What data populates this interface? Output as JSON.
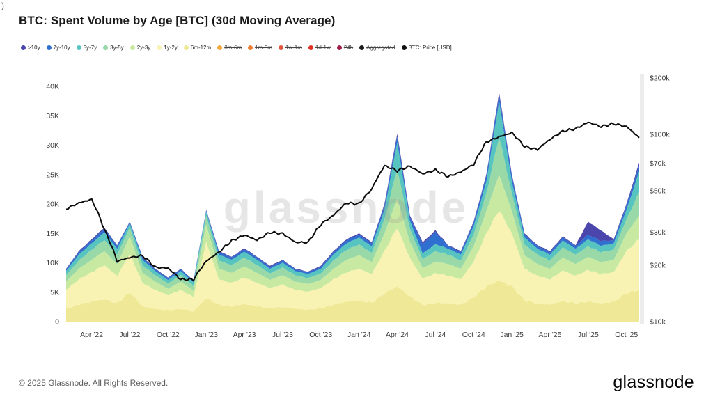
{
  "artifact": ")",
  "title": "BTC: Spent Volume by Age [BTC] (30d Moving Average)",
  "watermark": "glassnode",
  "footer": {
    "copyright": "© 2025 Glassnode. All Rights Reserved.",
    "brand": "glassnode"
  },
  "legend": [
    {
      "label": ">10y",
      "color": "#4a46ab",
      "active": true
    },
    {
      "label": "7y-10y",
      "color": "#2f6fd0",
      "active": true
    },
    {
      "label": "5y-7y",
      "color": "#57c4c0",
      "active": true
    },
    {
      "label": "3y-5y",
      "color": "#99d9a8",
      "active": true
    },
    {
      "label": "2y-3y",
      "color": "#c8e9a2",
      "active": true
    },
    {
      "label": "1y-2y",
      "color": "#f8f3b2",
      "active": true
    },
    {
      "label": "6m-12m",
      "color": "#efe896",
      "active": true
    },
    {
      "label": "3m-6m",
      "color": "#f5a83d",
      "active": false
    },
    {
      "label": "1m-3m",
      "color": "#ec7f36",
      "active": false
    },
    {
      "label": "1w-1m",
      "color": "#e25540",
      "active": false
    },
    {
      "label": "1d-1w",
      "color": "#df3025",
      "active": false
    },
    {
      "label": "24h",
      "color": "#9f1f4f",
      "active": false
    },
    {
      "label": "Aggregated",
      "color": "#1c1c1c",
      "active": false
    },
    {
      "label": "BTC: Price [USD]",
      "color": "#111111",
      "active": true
    }
  ],
  "chart_data": {
    "type": "area",
    "stacked": true,
    "title": "BTC: Spent Volume by Age [BTC] (30d Moving Average)",
    "x_months": [
      "Feb '22",
      "Mar '22",
      "Apr '22",
      "May '22",
      "Jun '22",
      "Jul '22",
      "Aug '22",
      "Sep '22",
      "Oct '22",
      "Nov '22",
      "Dec '22",
      "Jan '23",
      "Feb '23",
      "Mar '23",
      "Apr '23",
      "May '23",
      "Jun '23",
      "Jul '23",
      "Aug '23",
      "Sep '23",
      "Oct '23",
      "Nov '23",
      "Dec '23",
      "Jan '24",
      "Feb '24",
      "Mar '24",
      "Apr '24",
      "May '24",
      "Jun '24",
      "Jul '24",
      "Aug '24",
      "Sep '24",
      "Oct '24",
      "Nov '24",
      "Dec '24",
      "Jan '25",
      "Feb '25",
      "Mar '25",
      "Apr '25",
      "May '25",
      "Jun '25",
      "Jul '25",
      "Aug '25",
      "Sep '25",
      "Oct '25",
      "Nov '25"
    ],
    "x_ticks": [
      {
        "i": 2,
        "label": "Apr '22"
      },
      {
        "i": 5,
        "label": "Jul '22"
      },
      {
        "i": 8,
        "label": "Oct '22"
      },
      {
        "i": 11,
        "label": "Jan '23"
      },
      {
        "i": 14,
        "label": "Apr '23"
      },
      {
        "i": 17,
        "label": "Jul '23"
      },
      {
        "i": 20,
        "label": "Oct '23"
      },
      {
        "i": 23,
        "label": "Jan '24"
      },
      {
        "i": 26,
        "label": "Apr '24"
      },
      {
        "i": 29,
        "label": "Jul '24"
      },
      {
        "i": 32,
        "label": "Oct '24"
      },
      {
        "i": 35,
        "label": "Jan '25"
      },
      {
        "i": 38,
        "label": "Apr '25"
      },
      {
        "i": 41,
        "label": "Jul '25"
      },
      {
        "i": 44,
        "label": "Oct '25"
      }
    ],
    "left_axis": {
      "min": 0,
      "max": 40000,
      "ticks": [
        {
          "v": 0,
          "label": "0"
        },
        {
          "v": 5000,
          "label": "5K"
        },
        {
          "v": 10000,
          "label": "10K"
        },
        {
          "v": 15000,
          "label": "15K"
        },
        {
          "v": 20000,
          "label": "20K"
        },
        {
          "v": 25000,
          "label": "25K"
        },
        {
          "v": 30000,
          "label": "30K"
        },
        {
          "v": 35000,
          "label": "35K"
        },
        {
          "v": 40000,
          "label": "40K"
        }
      ]
    },
    "right_axis": {
      "min": 10000,
      "max": 200000,
      "scale": "log",
      "ticks": [
        {
          "v": 10000,
          "label": "$10k"
        },
        {
          "v": 20000,
          "label": "$20k"
        },
        {
          "v": 30000,
          "label": "$30k"
        },
        {
          "v": 50000,
          "label": "$50k"
        },
        {
          "v": 70000,
          "label": "$70k"
        },
        {
          "v": 100000,
          "label": "$100k"
        },
        {
          "v": 200000,
          "label": "$200k"
        }
      ]
    },
    "series": [
      {
        "name": "6m-12m",
        "color": "#efe896",
        "values": [
          2200,
          2900,
          3400,
          3800,
          3100,
          5000,
          2600,
          2200,
          1800,
          2200,
          1700,
          4000,
          2900,
          2600,
          3000,
          2600,
          2300,
          2500,
          2200,
          2000,
          2300,
          2900,
          3400,
          3600,
          3200,
          4800,
          6000,
          4300,
          2800,
          3200,
          3100,
          2900,
          4100,
          6000,
          7000,
          6000,
          3600,
          3100,
          2900,
          3500,
          3100,
          3400,
          3100,
          3400,
          4800,
          5500
        ]
      },
      {
        "name": "1y-2y",
        "color": "#f8f3b2",
        "values": [
          3200,
          4300,
          5000,
          5800,
          4700,
          6500,
          4000,
          3200,
          2700,
          3200,
          2500,
          9500,
          4300,
          4000,
          4500,
          4000,
          3400,
          3800,
          3200,
          3100,
          3400,
          4300,
          5000,
          5400,
          4900,
          7200,
          10000,
          6500,
          4500,
          5000,
          4700,
          4300,
          6100,
          9000,
          12000,
          9000,
          5400,
          4700,
          4300,
          5200,
          4700,
          5400,
          5000,
          5000,
          7200,
          8500
        ]
      },
      {
        "name": "2y-3y",
        "color": "#c8e9a2",
        "values": [
          1400,
          1800,
          2100,
          2400,
          2000,
          3000,
          1700,
          1400,
          1100,
          1400,
          1100,
          3000,
          1800,
          1700,
          1900,
          1700,
          1400,
          1600,
          1400,
          1300,
          1400,
          1800,
          2100,
          2300,
          2000,
          3000,
          5000,
          2700,
          1800,
          2000,
          2000,
          1800,
          2600,
          3800,
          6000,
          3800,
          2300,
          2000,
          1800,
          2200,
          2000,
          2200,
          2000,
          2100,
          3000,
          4000
        ]
      },
      {
        "name": "3y-5y",
        "color": "#99d9a8",
        "values": [
          1100,
          1400,
          1700,
          1900,
          1600,
          1500,
          1300,
          1100,
          900,
          1100,
          800,
          1500,
          1400,
          1300,
          1500,
          1300,
          1100,
          1300,
          1100,
          1000,
          1100,
          1400,
          1700,
          1800,
          1600,
          2400,
          5000,
          2200,
          1500,
          1800,
          1600,
          1400,
          2000,
          3000,
          6500,
          3000,
          1800,
          1600,
          1400,
          1700,
          1600,
          1800,
          1700,
          1700,
          2400,
          4000
        ]
      },
      {
        "name": "5y-7y",
        "color": "#57c4c0",
        "values": [
          700,
          1000,
          1100,
          1300,
          1000,
          700,
          900,
          700,
          600,
          700,
          600,
          700,
          1000,
          900,
          1000,
          900,
          800,
          800,
          700,
          700,
          800,
          1000,
          1100,
          1200,
          1100,
          1600,
          4500,
          1400,
          1000,
          1200,
          1000,
          1000,
          1400,
          2000,
          6000,
          2000,
          1200,
          1000,
          1000,
          1200,
          1000,
          1200,
          1100,
          1100,
          1600,
          3500
        ]
      },
      {
        "name": "7y-10y",
        "color": "#2f6fd0",
        "values": [
          300,
          400,
          500,
          600,
          500,
          200,
          400,
          300,
          300,
          300,
          200,
          200,
          400,
          400,
          400,
          400,
          300,
          400,
          300,
          300,
          300,
          400,
          500,
          500,
          500,
          700,
          1000,
          600,
          1600,
          2000,
          500,
          400,
          600,
          900,
          1000,
          900,
          500,
          500,
          400,
          500,
          500,
          800,
          800,
          500,
          700,
          1000
        ]
      },
      {
        "name": ">10y",
        "color": "#4a46ab",
        "values": [
          100,
          200,
          200,
          200,
          100,
          100,
          100,
          100,
          100,
          100,
          100,
          100,
          200,
          100,
          200,
          100,
          200,
          100,
          100,
          100,
          200,
          200,
          200,
          200,
          200,
          300,
          500,
          300,
          300,
          300,
          100,
          200,
          200,
          300,
          500,
          300,
          200,
          100,
          200,
          200,
          100,
          2200,
          1800,
          200,
          300,
          500
        ]
      }
    ],
    "price": {
      "name": "BTC: Price [USD]",
      "color": "#0b0b0b",
      "axis": "right",
      "values": [
        40000,
        43000,
        45000,
        31000,
        21000,
        22000,
        22500,
        19500,
        19300,
        16800,
        16800,
        21000,
        23500,
        27000,
        29000,
        27200,
        30000,
        29500,
        26500,
        26500,
        33000,
        37000,
        43000,
        42500,
        51000,
        68000,
        64000,
        67500,
        61500,
        64500,
        59500,
        63000,
        69000,
        91000,
        97000,
        102000,
        86000,
        83000,
        94000,
        104000,
        107000,
        116000,
        110000,
        114000,
        110000,
        96000
      ]
    }
  }
}
